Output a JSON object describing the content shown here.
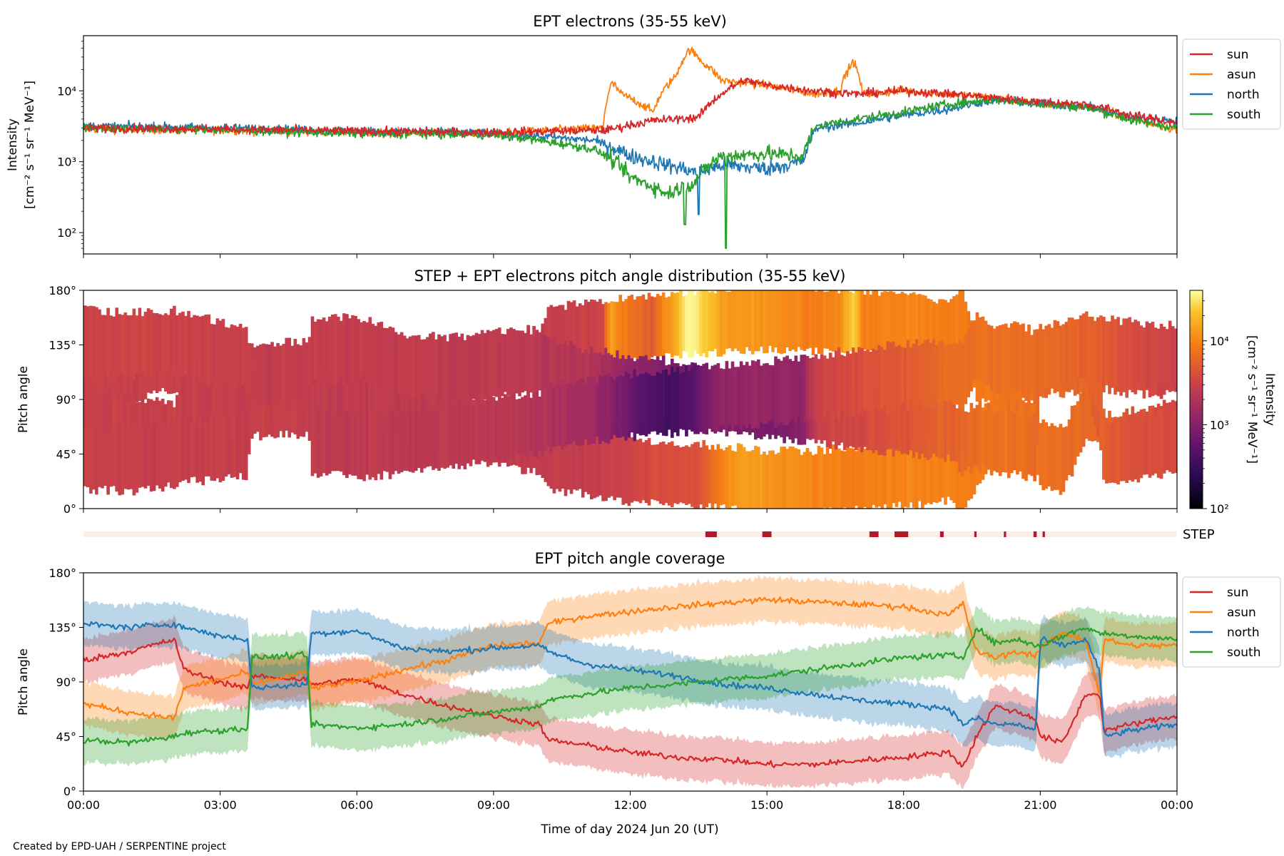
{
  "footer": "Created by EPD-UAH / SERPENTINE project",
  "colors": {
    "sun": "#d62728",
    "asun": "#ff7f0e",
    "north": "#1f77b4",
    "south": "#2ca02c",
    "step_bar": "#b2182b",
    "step_bg": "#fdeee8"
  },
  "chart_data": [
    {
      "type": "line",
      "title": "EPT electrons (35-55 keV)",
      "ylabel": [
        "Intensity",
        "[cm⁻² s⁻¹ sr⁻¹ MeV⁻¹]"
      ],
      "yscale": "log",
      "ylim": [
        50,
        60000
      ],
      "yticks": [
        {
          "value": 100,
          "label": "10²"
        },
        {
          "value": 1000,
          "label": "10³"
        },
        {
          "value": 10000,
          "label": "10⁴"
        }
      ],
      "xlim": [
        0,
        24
      ],
      "legend": "outside-right-top",
      "series": [
        {
          "name": "sun",
          "color": "#d62728",
          "x": [
            0,
            3,
            6,
            9,
            11.5,
            12.5,
            13.5,
            14.0,
            14.5,
            15,
            16,
            17,
            18,
            19,
            20,
            21,
            22,
            23,
            24
          ],
          "y": [
            3000,
            2900,
            2700,
            2600,
            2800,
            3800,
            4200,
            9000,
            14000,
            12000,
            10000,
            9000,
            10000,
            9000,
            8000,
            7000,
            6500,
            4500,
            3500
          ]
        },
        {
          "name": "asun",
          "color": "#ff7f0e",
          "x": [
            0,
            3,
            6,
            9,
            11.4,
            11.6,
            11.8,
            12.5,
            13.0,
            13.3,
            13.6,
            14,
            15,
            16,
            16.6,
            16.9,
            17.1,
            18,
            19,
            20,
            21,
            22,
            23,
            24
          ],
          "y": [
            2900,
            2800,
            2600,
            2500,
            3000,
            13000,
            9000,
            5000,
            16000,
            38000,
            25000,
            14000,
            12000,
            9000,
            10000,
            26000,
            9000,
            10000,
            9000,
            8000,
            6500,
            6000,
            4000,
            2800
          ]
        },
        {
          "name": "north",
          "color": "#1f77b4",
          "x": [
            0,
            3,
            6,
            9,
            11.2,
            12,
            12.8,
            13.5,
            14,
            15,
            15.8,
            16.1,
            17,
            18,
            19,
            20,
            21,
            22,
            23,
            24
          ],
          "y": [
            3200,
            3000,
            2700,
            2500,
            2000,
            1200,
            900,
            700,
            900,
            800,
            1000,
            3000,
            3500,
            4500,
            5500,
            7500,
            6500,
            6000,
            4200,
            3800
          ]
        },
        {
          "name": "south",
          "color": "#2ca02c",
          "x": [
            0,
            3,
            6,
            9,
            11.2,
            12,
            12.8,
            13.4,
            14,
            15,
            15.8,
            16.1,
            17,
            18,
            19,
            20,
            21,
            22,
            23,
            24
          ],
          "y": [
            3000,
            2800,
            2500,
            2400,
            1500,
            600,
            350,
            500,
            1200,
            1300,
            1200,
            3200,
            4000,
            5000,
            6500,
            7500,
            6500,
            5800,
            3800,
            3000
          ]
        }
      ]
    },
    {
      "type": "heatmap",
      "title": "STEP + EPT electrons pitch angle distribution (35-55 keV)",
      "ylabel": "Pitch angle",
      "ylim": [
        0,
        180
      ],
      "yticks": [
        {
          "value": 0,
          "label": "0°"
        },
        {
          "value": 45,
          "label": "45°"
        },
        {
          "value": 90,
          "label": "90°"
        },
        {
          "value": 135,
          "label": "135°"
        },
        {
          "value": 180,
          "label": "180°"
        }
      ],
      "xlim": [
        0,
        24
      ],
      "colormap": "inferno",
      "colorbar": {
        "label": [
          "Intensity",
          "[cm⁻² s⁻¹ sr⁻¹ MeV⁻¹]"
        ],
        "scale": "log",
        "range": [
          100,
          40000
        ],
        "ticks": [
          {
            "value": 100,
            "label": "10²"
          },
          {
            "value": 1000,
            "label": "10³"
          },
          {
            "value": 10000,
            "label": "10⁴"
          }
        ]
      }
    },
    {
      "type": "bar",
      "label": "STEP",
      "xlim": [
        0,
        24
      ],
      "intervals": [
        [
          13.65,
          13.9
        ],
        [
          14.9,
          15.1
        ],
        [
          17.25,
          17.45
        ],
        [
          17.8,
          18.1
        ],
        [
          18.8,
          18.88
        ],
        [
          19.55,
          19.6
        ],
        [
          20.2,
          20.25
        ],
        [
          20.85,
          20.92
        ],
        [
          21.05,
          21.1
        ]
      ]
    },
    {
      "type": "line",
      "title": "EPT pitch angle coverage",
      "ylabel": "Pitch angle",
      "ylim": [
        0,
        180
      ],
      "yticks": [
        {
          "value": 0,
          "label": "0°"
        },
        {
          "value": 45,
          "label": "45°"
        },
        {
          "value": 90,
          "label": "90°"
        },
        {
          "value": 135,
          "label": "135°"
        },
        {
          "value": 180,
          "label": "180°"
        }
      ],
      "xlim": [
        0,
        24
      ],
      "xticks": [
        {
          "value": 0,
          "label": "00:00"
        },
        {
          "value": 3,
          "label": "03:00"
        },
        {
          "value": 6,
          "label": "06:00"
        },
        {
          "value": 9,
          "label": "09:00"
        },
        {
          "value": 12,
          "label": "12:00"
        },
        {
          "value": 15,
          "label": "15:00"
        },
        {
          "value": 18,
          "label": "18:00"
        },
        {
          "value": 21,
          "label": "21:00"
        },
        {
          "value": 24,
          "label": "00:00"
        }
      ],
      "xlabel": "Time of day 2024 Jun 20 (UT)",
      "legend": "outside-right-top",
      "band_halfwidth_deg": 18,
      "series": [
        {
          "name": "sun",
          "color": "#d62728",
          "x": [
            0,
            1,
            2.0,
            2.2,
            3,
            3.6,
            3.7,
            4.9,
            5.0,
            6,
            7,
            8,
            9,
            10,
            10.2,
            11,
            12,
            13,
            14,
            15,
            16,
            17,
            18,
            19,
            19.3,
            19.6,
            20,
            20.5,
            20.9,
            21,
            21.5,
            22,
            22.3,
            22.4,
            23,
            24
          ],
          "y": [
            108,
            115,
            125,
            100,
            90,
            85,
            95,
            92,
            88,
            92,
            80,
            70,
            62,
            55,
            42,
            38,
            32,
            28,
            26,
            22,
            22,
            25,
            28,
            32,
            20,
            45,
            70,
            65,
            60,
            45,
            40,
            80,
            80,
            50,
            55,
            62
          ]
        },
        {
          "name": "asun",
          "color": "#ff7f0e",
          "x": [
            0,
            1,
            2.0,
            2.2,
            3,
            3.6,
            3.7,
            4.9,
            5.0,
            6,
            7,
            8,
            9,
            10,
            10.2,
            11,
            12,
            13,
            14,
            15,
            16,
            17,
            18,
            19,
            19.3,
            19.6,
            20,
            20.5,
            20.9,
            21,
            21.5,
            22,
            22.3,
            22.4,
            23,
            24
          ],
          "y": [
            72,
            65,
            60,
            85,
            92,
            98,
            88,
            98,
            85,
            90,
            100,
            108,
            120,
            122,
            138,
            144,
            148,
            152,
            155,
            158,
            156,
            154,
            152,
            145,
            155,
            115,
            110,
            115,
            112,
            118,
            130,
            125,
            80,
            125,
            120,
            120
          ]
        },
        {
          "name": "north",
          "color": "#1f77b4",
          "x": [
            0,
            1,
            2.0,
            2.2,
            3,
            3.6,
            3.7,
            4.9,
            5.0,
            6,
            7,
            8,
            9,
            10,
            10.2,
            11,
            12,
            13,
            14,
            15,
            16,
            17,
            18,
            19,
            19.3,
            19.6,
            20,
            20.5,
            20.9,
            21,
            21.5,
            22,
            22.3,
            22.4,
            23,
            24
          ],
          "y": [
            138,
            135,
            138,
            135,
            128,
            125,
            85,
            88,
            130,
            132,
            118,
            115,
            118,
            120,
            115,
            105,
            100,
            95,
            88,
            85,
            80,
            75,
            72,
            68,
            55,
            60,
            55,
            55,
            50,
            125,
            120,
            125,
            100,
            45,
            50,
            55
          ]
        },
        {
          "name": "south",
          "color": "#2ca02c",
          "x": [
            0,
            1,
            2.0,
            2.2,
            3,
            3.6,
            3.7,
            4.9,
            5.0,
            6,
            7,
            8,
            9,
            10,
            10.2,
            11,
            12,
            13,
            14,
            15,
            16,
            17,
            18,
            19,
            19.3,
            19.6,
            20,
            20.5,
            20.9,
            21,
            21.5,
            22,
            22.3,
            22.4,
            23,
            24
          ],
          "y": [
            42,
            40,
            45,
            48,
            50,
            52,
            110,
            112,
            55,
            52,
            55,
            60,
            65,
            70,
            75,
            80,
            85,
            88,
            92,
            95,
            100,
            105,
            110,
            112,
            110,
            135,
            122,
            125,
            120,
            120,
            128,
            135,
            130,
            130,
            128,
            125
          ]
        }
      ]
    }
  ]
}
